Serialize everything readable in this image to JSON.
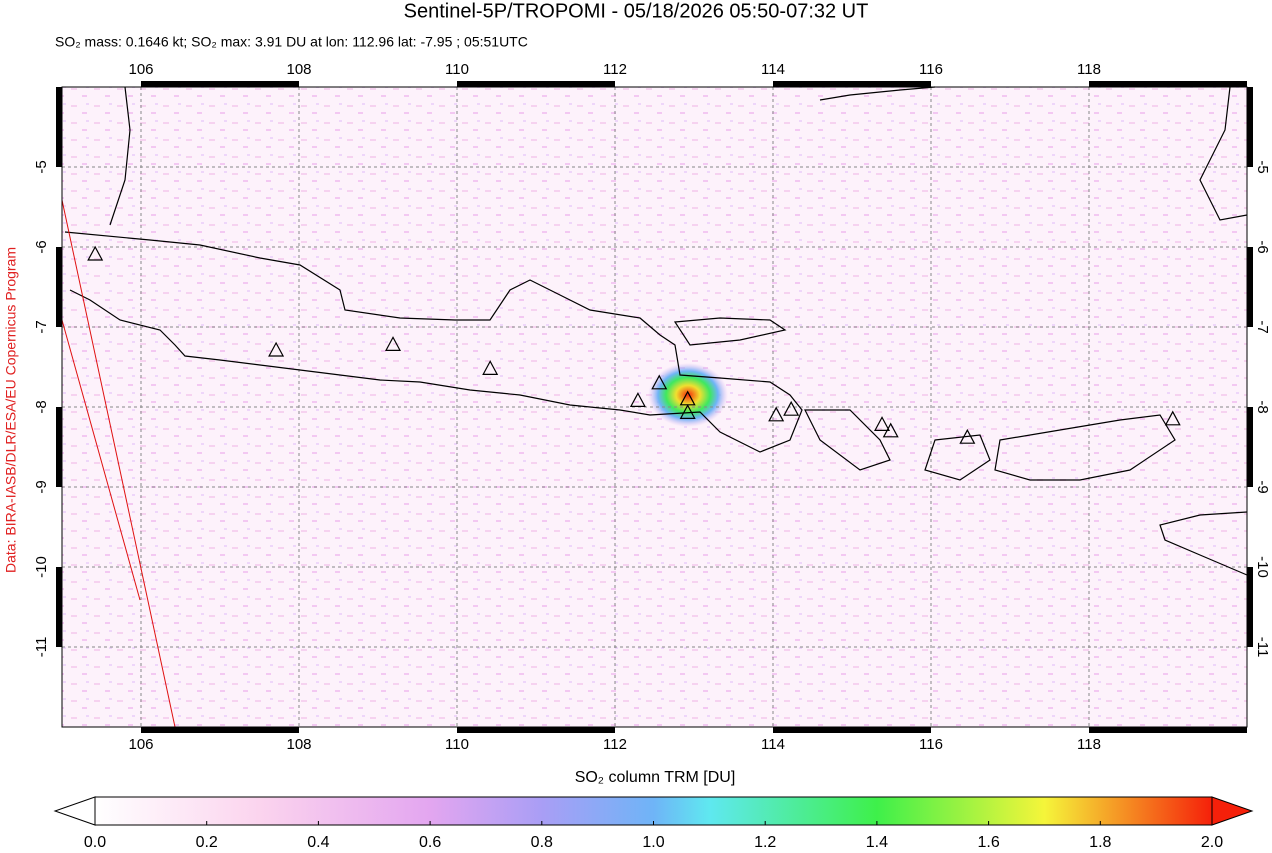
{
  "title": "Sentinel-5P/TROPOMI - 05/18/2026 05:50-07:32 UT",
  "subtitle": "SO₂ mass: 0.1646 kt; SO₂ max: 3.91 DU at lon: 112.96 lat: -7.95 ; 05:51UTC",
  "credit": "Data: BIRA-IASB/DLR/ESA/EU Copernicus Program",
  "map": {
    "xlim": [
      105,
      120
    ],
    "ylim": [
      -4,
      -12
    ],
    "xticks": [
      106,
      108,
      110,
      112,
      114,
      116,
      118
    ],
    "yticks": [
      -5,
      -6,
      -7,
      -8,
      -9,
      -10,
      -11
    ],
    "volcanoes": [
      {
        "lon": 105.42,
        "lat": -6.1
      },
      {
        "lon": 107.71,
        "lat": -7.3
      },
      {
        "lon": 109.19,
        "lat": -7.23
      },
      {
        "lon": 110.42,
        "lat": -7.53
      },
      {
        "lon": 112.29,
        "lat": -7.93
      },
      {
        "lon": 112.56,
        "lat": -7.71
      },
      {
        "lon": 112.92,
        "lat": -7.91
      },
      {
        "lon": 112.92,
        "lat": -8.08
      },
      {
        "lon": 114.04,
        "lat": -8.11
      },
      {
        "lon": 114.23,
        "lat": -8.04
      },
      {
        "lon": 115.38,
        "lat": -8.23
      },
      {
        "lon": 115.49,
        "lat": -8.31
      },
      {
        "lon": 116.46,
        "lat": -8.39
      },
      {
        "lon": 119.06,
        "lat": -8.16
      }
    ]
  },
  "colorbar": {
    "label": "SO₂ column TRM [DU]",
    "range": [
      0,
      2
    ],
    "ticks": [
      {
        "value": 0,
        "label": "0.0"
      },
      0.2,
      0.4,
      0.6,
      0.8,
      {
        "value": 1,
        "label": "1.0"
      },
      1.2,
      1.4,
      1.6,
      1.8,
      {
        "value": 2,
        "label": "2.0"
      }
    ]
  }
}
